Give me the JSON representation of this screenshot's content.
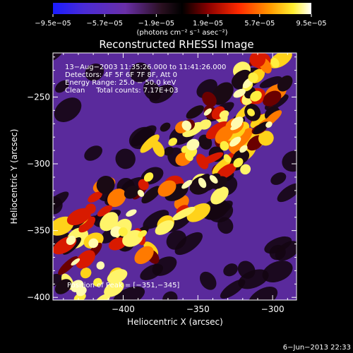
{
  "chart_data": {
    "type": "heatmap",
    "title": "Reconstructed RHESSI Image",
    "xlabel": "Heliocentric X (arcsec)",
    "ylabel": "Heliocentric Y (arcsec)",
    "xlim": [
      -447,
      -284
    ],
    "ylim": [
      -402,
      -217
    ],
    "x_ticks": [
      -400,
      -350,
      -300
    ],
    "x_tick_labels": [
      "−400",
      "−350",
      "−300"
    ],
    "y_ticks": [
      -400,
      -350,
      -300,
      -250
    ],
    "y_tick_labels": [
      "−400",
      "−350",
      "−300",
      "−250"
    ],
    "colorbar": {
      "min": -9.5e-05,
      "max": 9.5e-05,
      "tick_values": [
        -9.5e-05,
        -5.7e-05,
        -1.9e-05,
        1.9e-05,
        5.7e-05,
        9.5e-05
      ],
      "tick_labels": [
        "−9.5e−05",
        "−5.7e−05",
        "−1.9e−05",
        "1.9e−05",
        "5.7e−05",
        "9.5e−05"
      ],
      "unit_label": "(photons cm⁻² s⁻¹ asec⁻²)",
      "colormap": "blue-purple-black-red-yellow-white"
    },
    "annotations": [
      "13−Aug−2003 11:35:26.000 to 11:41:26.000",
      "Detectors: 4F 5F 6F 7F 8F, Att 0",
      "Energy Range: 25.0 − 50.0 keV",
      "Clean     Total counts: 7.17E+03",
      "Position of Peak = [−351,−345]"
    ],
    "peak": [
      -351,
      -345
    ],
    "generated": "6−Jun−2013 22:33"
  }
}
